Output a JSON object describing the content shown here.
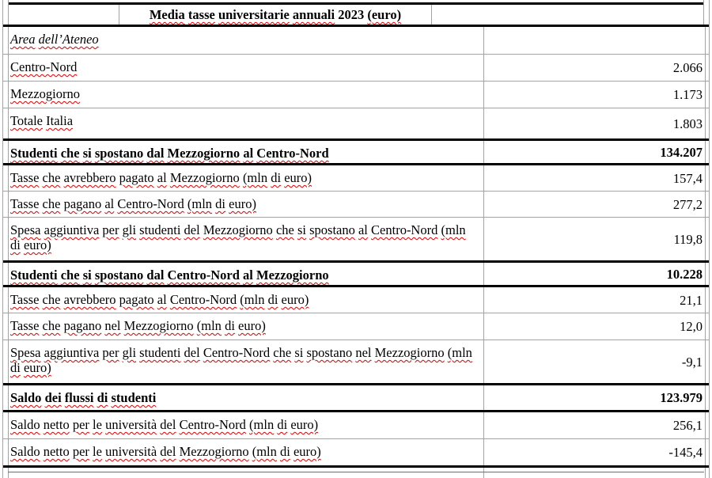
{
  "table": {
    "title": "Media tasse universitarie annuali 2023 (euro)",
    "rows": [
      {
        "label": "Area dell’Ateneo",
        "value": "",
        "style": "italic",
        "border": "thin"
      },
      {
        "label": "Centro-Nord",
        "value": "2.066",
        "style": "normal",
        "border": "thin"
      },
      {
        "label": "Mezzogiorno",
        "value": "1.173",
        "style": "normal",
        "border": "thin"
      },
      {
        "label": "Totale Italia",
        "value": "1.803",
        "style": "normal",
        "border": "thick"
      },
      {
        "label": "Studenti che si spostano dal Mezzogiorno al Centro-Nord",
        "value": "134.207",
        "style": "bold",
        "border": "thick"
      },
      {
        "label": "Tasse che avrebbero pagato al Mezzogiorno (mln di euro)",
        "value": "157,4",
        "style": "normal",
        "border": "thin"
      },
      {
        "label": "Tasse che pagano al Centro-Nord (mln di euro)",
        "value": "277,2",
        "style": "normal",
        "border": "thin"
      },
      {
        "label": "Spesa aggiuntiva per gli studenti del Mezzogiorno che si spostano al Centro-Nord (mln\ndi euro)",
        "value": "119,8",
        "style": "normal",
        "border": "thick"
      },
      {
        "label": "Studenti che si spostano dal Centro-Nord al Mezzogiorno",
        "value": "10.228",
        "style": "bold",
        "border": "thick"
      },
      {
        "label": "Tasse che avrebbero pagato al Centro-Nord (mln di euro)",
        "value": "21,1",
        "style": "normal",
        "border": "thin"
      },
      {
        "label": "Tasse che pagano nel Mezzogiorno (mln di euro)",
        "value": "12,0",
        "style": "normal",
        "border": "thin"
      },
      {
        "label": "Spesa aggiuntiva per gli studenti del Centro-Nord che si spostano nel Mezzogiorno (mln\ndi euro)",
        "value": "-9,1",
        "style": "normal",
        "border": "thick"
      },
      {
        "label": "Saldo dei flussi di studenti",
        "value": "123.979",
        "style": "bold",
        "border": "thick"
      },
      {
        "label": "Saldo netto per le università del Centro-Nord (mln di euro)",
        "value": "256,1",
        "style": "normal",
        "border": "thin"
      },
      {
        "label": "Saldo netto per le università del Mezzogiorno (mln di euro)",
        "value": "-145,4",
        "style": "normal",
        "border": "double"
      }
    ],
    "colors": {
      "thin_border": "#a3a3a3",
      "thick_border": "#000000",
      "spellcheck_squiggle": "#e00000",
      "text": "#000000",
      "background": "#ffffff"
    }
  }
}
